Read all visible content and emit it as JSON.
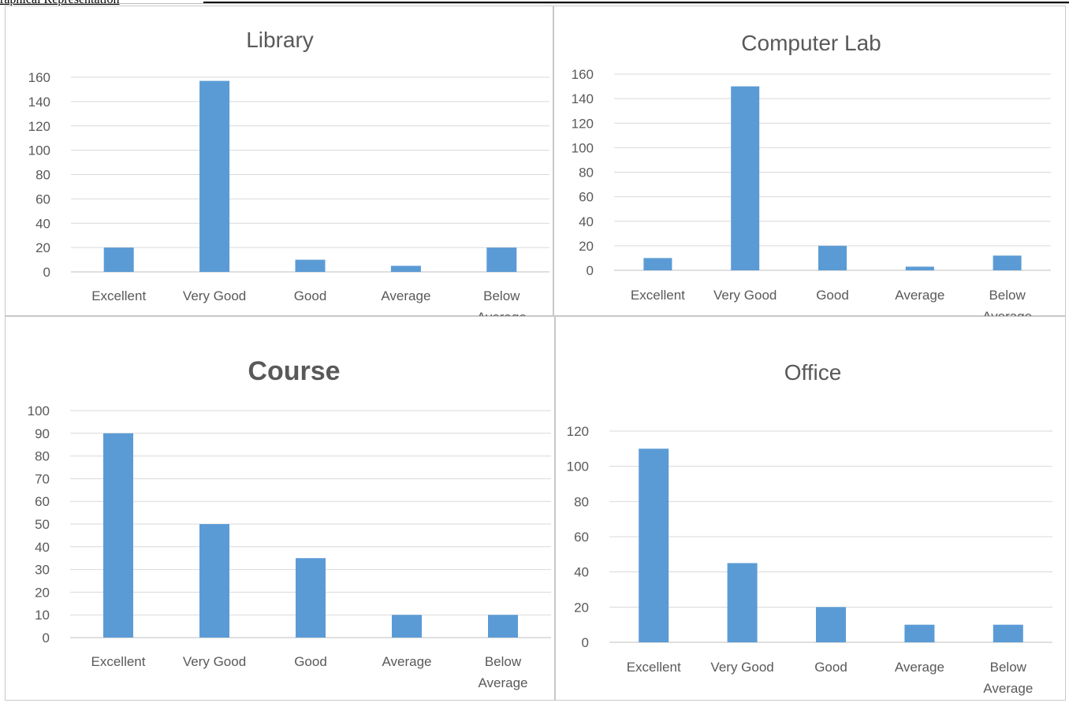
{
  "heading": "raphical Representation",
  "chart_data": [
    {
      "type": "bar",
      "title": "Library",
      "categories": [
        "Excellent",
        "Very Good",
        "Good",
        "Average",
        "Below Average"
      ],
      "values": [
        20,
        157,
        10,
        5,
        20
      ],
      "ylim": [
        0,
        160
      ],
      "yticks": [
        0,
        20,
        40,
        60,
        80,
        100,
        120,
        140,
        160
      ],
      "grid": true,
      "bar_color": "#5b9bd5"
    },
    {
      "type": "bar",
      "title": "Computer Lab",
      "categories": [
        "Excellent",
        "Very Good",
        "Good",
        "Average",
        "Below Average"
      ],
      "values": [
        10,
        150,
        20,
        3,
        12
      ],
      "ylim": [
        0,
        160
      ],
      "yticks": [
        0,
        20,
        40,
        60,
        80,
        100,
        120,
        140,
        160
      ],
      "grid": true,
      "bar_color": "#5b9bd5"
    },
    {
      "type": "bar",
      "title": "Course",
      "title_bold": true,
      "categories": [
        "Excellent",
        "Very Good",
        "Good",
        "Average",
        "Below Average"
      ],
      "values": [
        90,
        50,
        35,
        10,
        10
      ],
      "ylim": [
        0,
        100
      ],
      "yticks": [
        0,
        10,
        20,
        30,
        40,
        50,
        60,
        70,
        80,
        90,
        100
      ],
      "grid": true,
      "bar_color": "#5b9bd5"
    },
    {
      "type": "bar",
      "title": "Office",
      "categories": [
        "Excellent",
        "Very Good",
        "Good",
        "Average",
        "Below Average"
      ],
      "values": [
        110,
        45,
        20,
        10,
        10
      ],
      "ylim": [
        0,
        120
      ],
      "yticks": [
        0,
        20,
        40,
        60,
        80,
        100,
        120
      ],
      "grid": true,
      "bar_color": "#5b9bd5"
    }
  ]
}
